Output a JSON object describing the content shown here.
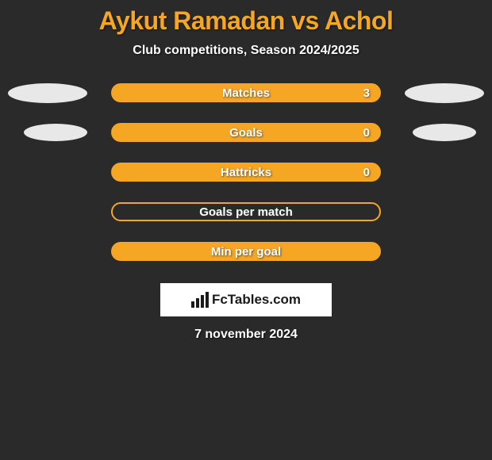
{
  "title": "Aykut Ramadan vs Achol",
  "subtitle": "Club competitions, Season 2024/2025",
  "date": "7 november 2024",
  "logo_text": "FcTables.com",
  "colors": {
    "accent": "#f5a623",
    "background": "#2a2a2a",
    "text": "#ffffff",
    "ellipse": "#e8e8e8",
    "logo_bg": "#ffffff",
    "logo_text": "#1a1a1a"
  },
  "stats": [
    {
      "label": "Matches",
      "value": "3",
      "filled": true,
      "show_ellipses": true
    },
    {
      "label": "Goals",
      "value": "0",
      "filled": true,
      "show_ellipses": true
    },
    {
      "label": "Hattricks",
      "value": "0",
      "filled": true,
      "show_ellipses": false
    },
    {
      "label": "Goals per match",
      "value": "",
      "filled": false,
      "show_ellipses": false
    },
    {
      "label": "Min per goal",
      "value": "",
      "filled": true,
      "show_ellipses": false
    }
  ]
}
